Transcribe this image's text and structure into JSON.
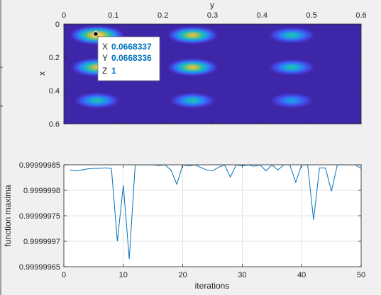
{
  "chart_data": [
    {
      "type": "heatmap",
      "xlabel": "y",
      "ylabel": "x",
      "xlim": [
        0,
        0.6
      ],
      "ylim": [
        0,
        0.6
      ],
      "x_axis_location": "top",
      "y_direction": "reverse",
      "x_ticks": [
        "0",
        "0.1",
        "0.2",
        "0.3",
        "0.4",
        "0.5",
        "0.6"
      ],
      "y_ticks": [
        "0",
        "0.2",
        "0.4",
        "0.6"
      ],
      "x_tick_values": [
        0,
        0.1,
        0.2,
        0.3,
        0.4,
        0.5,
        0.6
      ],
      "y_tick_values": [
        0,
        0.2,
        0.4,
        0.6
      ],
      "peaks": [
        {
          "y": 0.067,
          "x": 0.067,
          "z": 1.0
        },
        {
          "y": 0.26,
          "x": 0.067,
          "z": 0.82
        },
        {
          "y": 0.46,
          "x": 0.067,
          "z": 0.6
        },
        {
          "y": 0.067,
          "x": 0.26,
          "z": 0.9
        },
        {
          "y": 0.26,
          "x": 0.26,
          "z": 0.8
        },
        {
          "y": 0.46,
          "x": 0.26,
          "z": 0.58
        },
        {
          "y": 0.067,
          "x": 0.46,
          "z": 0.58
        },
        {
          "y": 0.26,
          "x": 0.46,
          "z": 0.55
        },
        {
          "y": 0.46,
          "x": 0.46,
          "z": 0.48
        }
      ],
      "colormap": [
        "#3e26a8",
        "#4646ea",
        "#2b7ff9",
        "#14b2d1",
        "#3ec487",
        "#c6bb4b",
        "#f9d02a",
        "#f9fb15"
      ],
      "datatip": {
        "x_label": "X",
        "x_value": "0.0668337",
        "y_label": "Y",
        "y_value": "0.0668336",
        "z_label": "Z",
        "z_value": "1"
      }
    },
    {
      "type": "line",
      "xlabel": "iterations",
      "ylabel": "function maxima",
      "xlim": [
        0,
        50
      ],
      "ylim": [
        0.99999965,
        0.99999985
      ],
      "grid": true,
      "x_ticks": [
        "0",
        "10",
        "20",
        "30",
        "40",
        "50"
      ],
      "x_tick_values": [
        0,
        10,
        20,
        30,
        40,
        50
      ],
      "y_ticks": [
        "0.99999985",
        "0.9999998",
        "0.99999975",
        "0.9999997",
        "0.99999965"
      ],
      "y_tick_values": [
        0.99999985,
        0.9999998,
        0.99999975,
        0.9999997,
        0.99999965
      ],
      "line_color": "#0072bd",
      "x": [
        1,
        2,
        3,
        4,
        5,
        6,
        7,
        8,
        9,
        10,
        11,
        12,
        13,
        14,
        15,
        16,
        17,
        18,
        19,
        20,
        21,
        22,
        23,
        24,
        25,
        26,
        27,
        28,
        29,
        30,
        31,
        32,
        33,
        34,
        35,
        36,
        37,
        38,
        39,
        40,
        41,
        42,
        43,
        44,
        45,
        46,
        47,
        48,
        49,
        50
      ],
      "values": [
        0.99999984,
        0.999999838,
        0.99999984,
        0.999999842,
        0.999999843,
        0.999999843,
        0.999999844,
        0.999999843,
        0.9999997,
        0.99999981,
        0.999999665,
        0.99999985,
        0.99999985,
        0.99999985,
        0.99999985,
        0.999999849,
        0.99999985,
        0.99999984,
        0.999999812,
        0.99999985,
        0.999999848,
        0.99999985,
        0.999999845,
        0.99999984,
        0.999999838,
        0.999999845,
        0.99999985,
        0.999999826,
        0.99999985,
        0.999999848,
        0.99999985,
        0.999999847,
        0.99999985,
        0.999999838,
        0.99999985,
        0.99999984,
        0.99999985,
        0.99999985,
        0.999999816,
        0.99999985,
        0.99999985,
        0.999999742,
        0.999999844,
        0.999999844,
        0.999999798,
        0.99999985,
        0.99999985,
        0.99999985,
        0.99999985,
        0.999999843
      ]
    }
  ]
}
